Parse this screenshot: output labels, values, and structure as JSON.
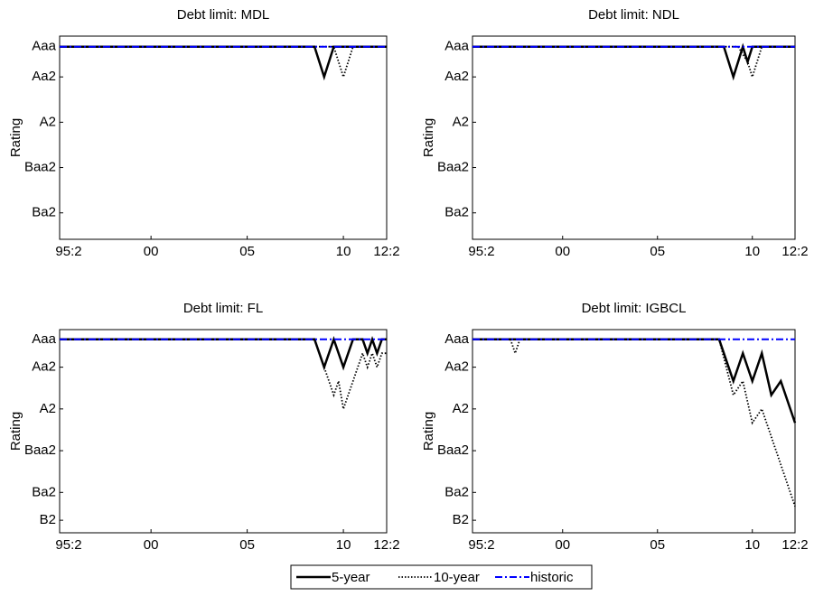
{
  "chart_data": [
    {
      "type": "line",
      "title": "Debt limit: MDL",
      "y_label": "Rating",
      "xlim": [
        1995.25,
        2012.25
      ],
      "ylim": [
        13.75,
        0.3
      ],
      "xticks": [
        {
          "value": 1995.25,
          "label": "95:2"
        },
        {
          "value": 2000,
          "label": "00"
        },
        {
          "value": 2005,
          "label": "05"
        },
        {
          "value": 2010,
          "label": "10"
        },
        {
          "value": 2012.25,
          "label": "12:2"
        }
      ],
      "yticks": [
        {
          "value": 1,
          "label": "Aaa"
        },
        {
          "value": 3,
          "label": "Aa2"
        },
        {
          "value": 6,
          "label": "A2"
        },
        {
          "value": 9,
          "label": "Baa2"
        },
        {
          "value": 12,
          "label": "Ba2"
        }
      ],
      "series": [
        {
          "name": "5-year",
          "color": "#000000",
          "style": "solid",
          "x": [
            1995.25,
            2008.5,
            2009,
            2009.5,
            2012.25
          ],
          "values": [
            1,
            1,
            3,
            1,
            1
          ]
        },
        {
          "name": "10-year",
          "color": "#000000",
          "style": "dotted",
          "x": [
            1995.25,
            2009.5,
            2010,
            2010.5,
            2012.25
          ],
          "values": [
            1,
            1,
            3,
            1,
            1
          ]
        },
        {
          "name": "historic",
          "color": "#0000ff",
          "style": "dashdot",
          "x": [
            1995.25,
            2012.25
          ],
          "values": [
            1,
            1
          ]
        }
      ]
    },
    {
      "type": "line",
      "title": "Debt limit: NDL",
      "y_label": "Rating",
      "xlim": [
        1995.25,
        2012.25
      ],
      "ylim": [
        13.75,
        0.3
      ],
      "xticks": [
        {
          "value": 1995.25,
          "label": "95:2"
        },
        {
          "value": 2000,
          "label": "00"
        },
        {
          "value": 2005,
          "label": "05"
        },
        {
          "value": 2010,
          "label": "10"
        },
        {
          "value": 2012.25,
          "label": "12:2"
        }
      ],
      "yticks": [
        {
          "value": 1,
          "label": "Aaa"
        },
        {
          "value": 3,
          "label": "Aa2"
        },
        {
          "value": 6,
          "label": "A2"
        },
        {
          "value": 9,
          "label": "Baa2"
        },
        {
          "value": 12,
          "label": "Ba2"
        }
      ],
      "series": [
        {
          "name": "5-year",
          "color": "#000000",
          "style": "solid",
          "x": [
            1995.25,
            2008.5,
            2009,
            2009.5,
            2009.75,
            2010,
            2012.25
          ],
          "values": [
            1,
            1,
            3,
            1,
            2,
            1,
            1
          ]
        },
        {
          "name": "10-year",
          "color": "#000000",
          "style": "dotted",
          "x": [
            1995.25,
            2009.25,
            2009.75,
            2010,
            2010.5,
            2012.25
          ],
          "values": [
            1,
            1,
            2,
            3,
            1,
            1
          ]
        },
        {
          "name": "historic",
          "color": "#0000ff",
          "style": "dashdot",
          "x": [
            1995.25,
            2012.25
          ],
          "values": [
            1,
            1
          ]
        }
      ]
    },
    {
      "type": "line",
      "title": "Debt limit: FL",
      "y_label": "Rating",
      "xlim": [
        1995.25,
        2012.25
      ],
      "ylim": [
        14.9,
        0.3
      ],
      "xticks": [
        {
          "value": 1995.25,
          "label": "95:2"
        },
        {
          "value": 2000,
          "label": "00"
        },
        {
          "value": 2005,
          "label": "05"
        },
        {
          "value": 2010,
          "label": "10"
        },
        {
          "value": 2012.25,
          "label": "12:2"
        }
      ],
      "yticks": [
        {
          "value": 1,
          "label": "Aaa"
        },
        {
          "value": 3,
          "label": "Aa2"
        },
        {
          "value": 6,
          "label": "A2"
        },
        {
          "value": 9,
          "label": "Baa2"
        },
        {
          "value": 12,
          "label": "Ba2"
        },
        {
          "value": 14,
          "label": "B2"
        }
      ],
      "series": [
        {
          "name": "5-year",
          "color": "#000000",
          "style": "solid",
          "x": [
            1995.25,
            2008.5,
            2009,
            2009.5,
            2010,
            2010.5,
            2011,
            2011.25,
            2011.5,
            2011.75,
            2012,
            2012.25
          ],
          "values": [
            1,
            1,
            3,
            1,
            3,
            1,
            1,
            2,
            1,
            2,
            1,
            1
          ]
        },
        {
          "name": "10-year",
          "color": "#000000",
          "style": "dotted",
          "x": [
            1995.25,
            2008.5,
            2009.25,
            2009.5,
            2009.75,
            2010,
            2010.5,
            2011,
            2011.25,
            2011.5,
            2011.75,
            2012,
            2012.25
          ],
          "values": [
            1,
            1,
            4,
            5,
            4,
            6,
            4,
            2,
            3,
            2,
            3,
            2,
            2
          ]
        },
        {
          "name": "historic",
          "color": "#0000ff",
          "style": "dashdot",
          "x": [
            1995.25,
            2012.25
          ],
          "values": [
            1,
            1
          ]
        }
      ]
    },
    {
      "type": "line",
      "title": "Debt limit: IGBCL",
      "y_label": "Rating",
      "xlim": [
        1995.25,
        2012.25
      ],
      "ylim": [
        14.9,
        0.3
      ],
      "xticks": [
        {
          "value": 1995.25,
          "label": "95:2"
        },
        {
          "value": 2000,
          "label": "00"
        },
        {
          "value": 2005,
          "label": "05"
        },
        {
          "value": 2010,
          "label": "10"
        },
        {
          "value": 2012.25,
          "label": "12:2"
        }
      ],
      "yticks": [
        {
          "value": 1,
          "label": "Aaa"
        },
        {
          "value": 3,
          "label": "Aa2"
        },
        {
          "value": 6,
          "label": "A2"
        },
        {
          "value": 9,
          "label": "Baa2"
        },
        {
          "value": 12,
          "label": "Ba2"
        },
        {
          "value": 14,
          "label": "B2"
        }
      ],
      "series": [
        {
          "name": "5-year",
          "color": "#000000",
          "style": "solid",
          "x": [
            1995.25,
            2008.25,
            2009,
            2009.5,
            2010,
            2010.5,
            2011,
            2011.5,
            2012.25
          ],
          "values": [
            1,
            1,
            4,
            2,
            4,
            2,
            5,
            4,
            7
          ]
        },
        {
          "name": "10-year",
          "color": "#000000",
          "style": "dotted",
          "x": [
            1995.25,
            1997.25,
            1997.5,
            1997.75,
            2008.25,
            2009,
            2009.5,
            2010,
            2010.5,
            2011.5,
            2012.25
          ],
          "values": [
            1,
            1,
            2,
            1,
            1,
            5,
            4,
            7,
            6,
            10,
            13
          ]
        },
        {
          "name": "historic",
          "color": "#0000ff",
          "style": "dashdot",
          "x": [
            1995.25,
            2012.25
          ],
          "values": [
            1,
            1
          ]
        }
      ]
    }
  ]
}
